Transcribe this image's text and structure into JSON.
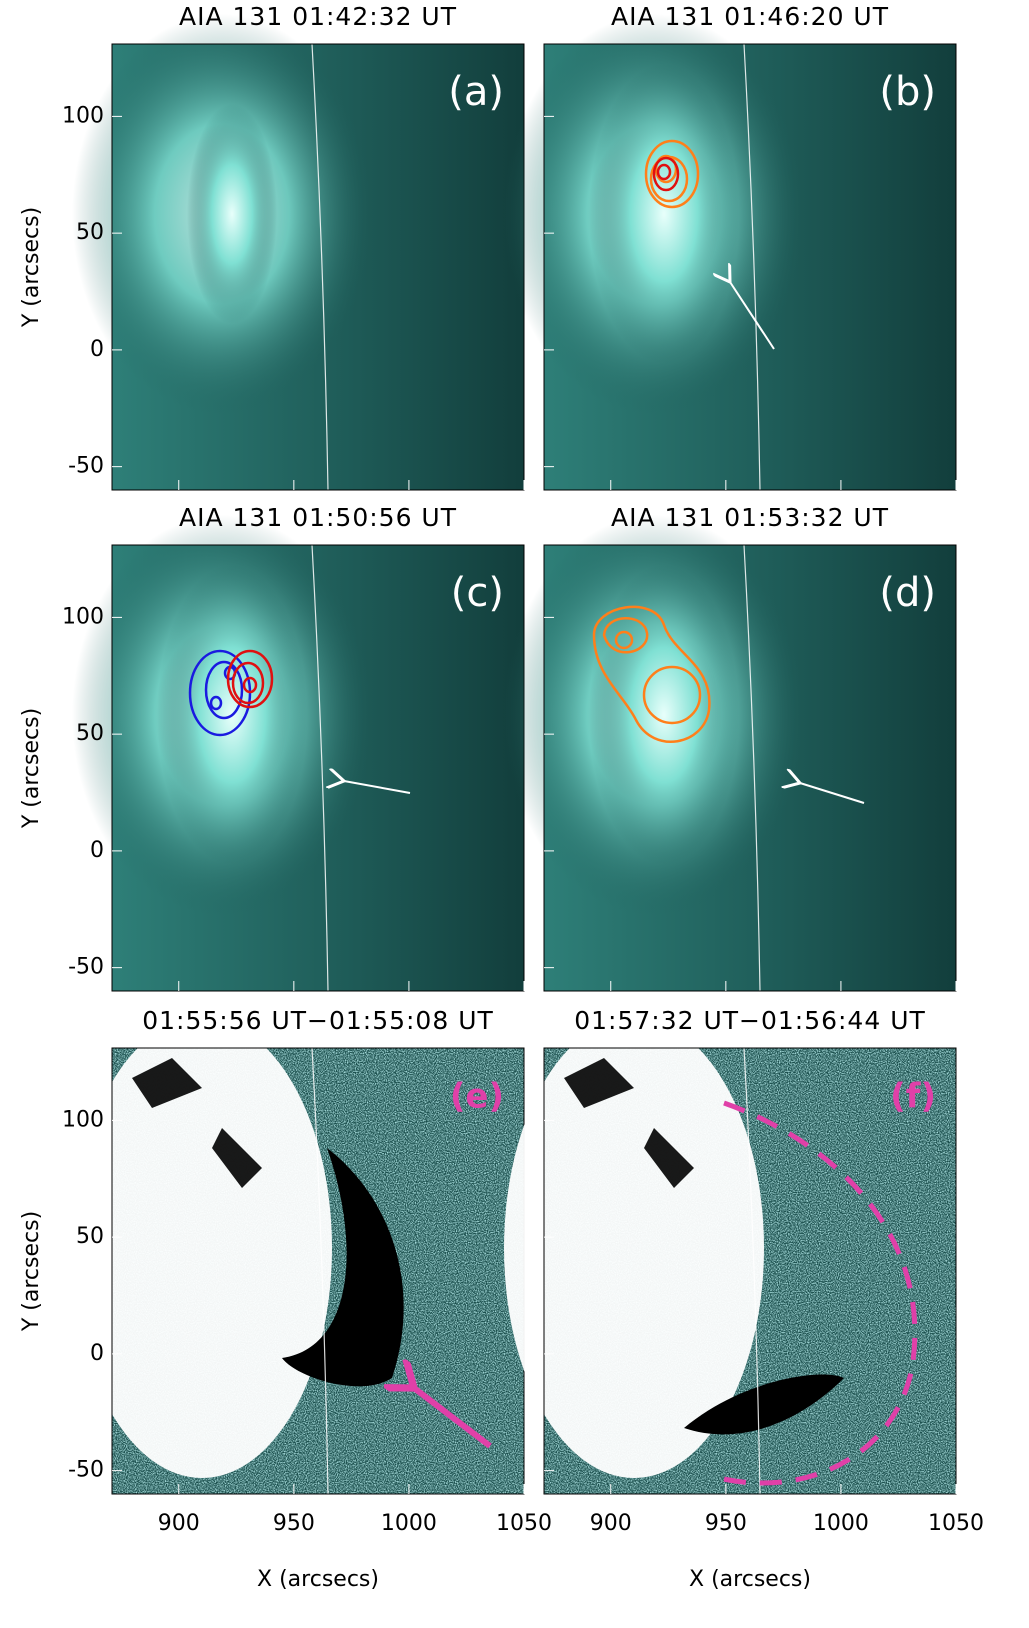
{
  "figure": {
    "xlabel": "X (arcsecs)",
    "ylabel": "Y (arcsecs)",
    "xlim": [
      871,
      1050
    ],
    "ylim": [
      -60,
      131
    ],
    "xticks": [
      900,
      950,
      1000,
      1050
    ],
    "yticks": [
      -50,
      0,
      50,
      100
    ],
    "panels": [
      {
        "title": "AIA 131 01:42:32 UT",
        "tag": "(a)"
      },
      {
        "title": "AIA 131 01:46:20 UT",
        "tag": "(b)"
      },
      {
        "title": "AIA 131 01:50:56 UT",
        "tag": "(c)"
      },
      {
        "title": "AIA 131 01:53:32 UT",
        "tag": "(d)"
      },
      {
        "title": "01:55:56 UT−01:55:08 UT",
        "tag": "(e)"
      },
      {
        "title": "01:57:32 UT−01:56:44 UT",
        "tag": "(f)"
      }
    ]
  }
}
